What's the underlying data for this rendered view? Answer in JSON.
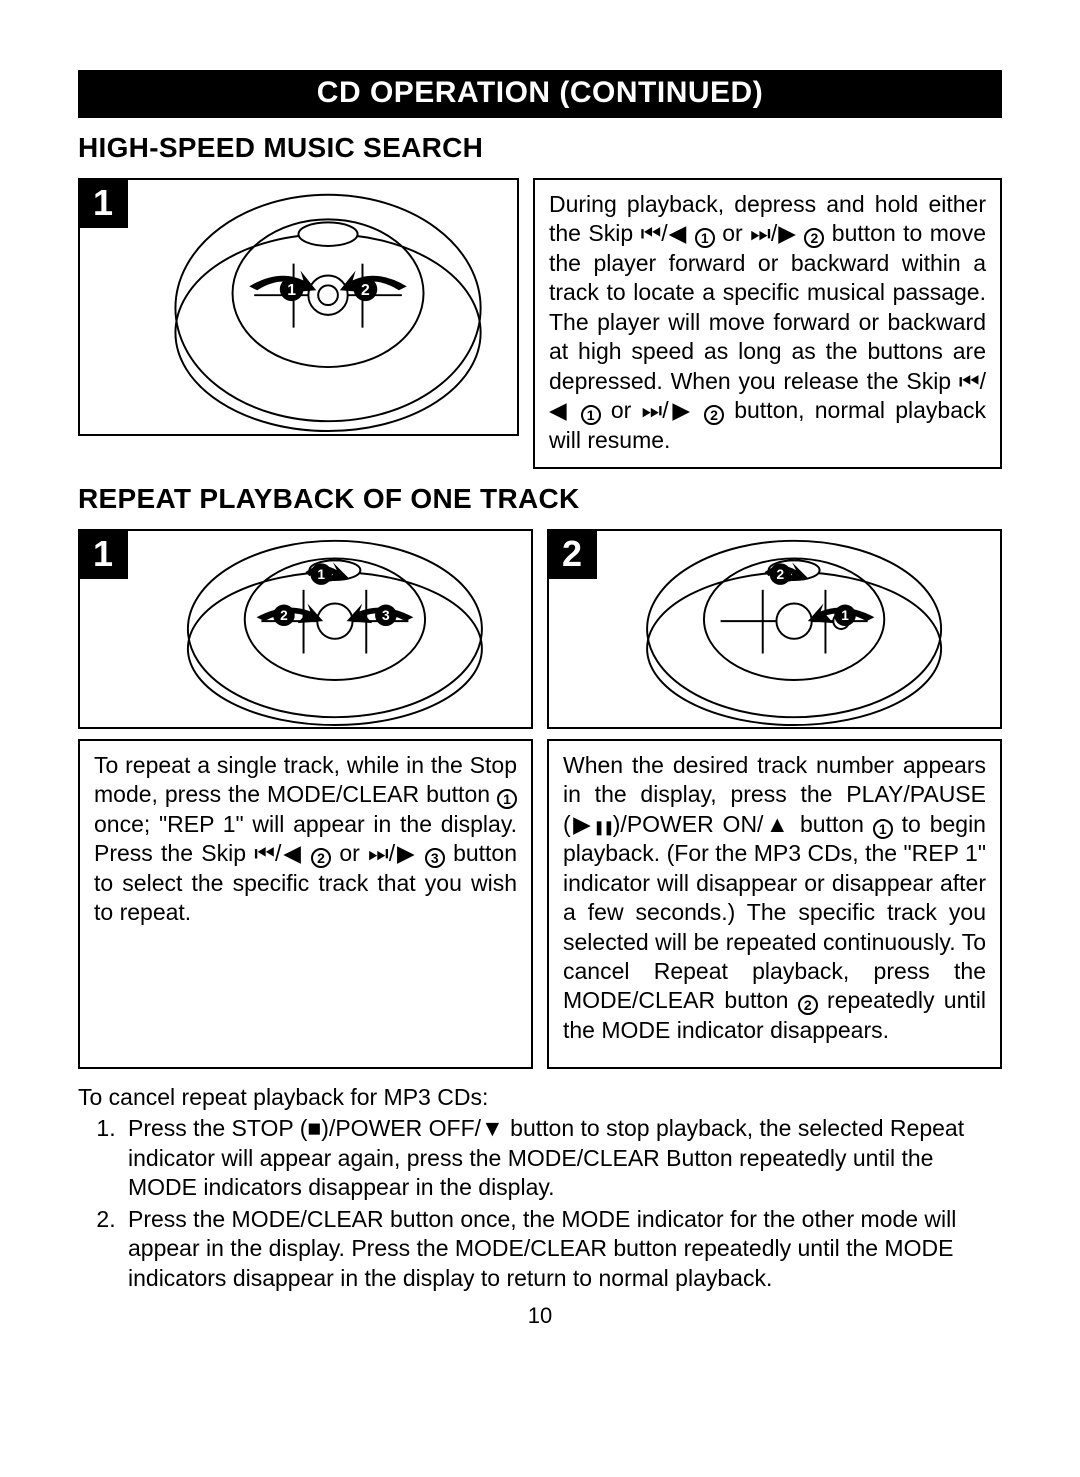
{
  "banner": "CD OPERATION (CONTINUED)",
  "section1": {
    "heading": "HIGH-SPEED MUSIC SEARCH",
    "panel_badge": "1",
    "diagram": {
      "arrow_labels": [
        "1",
        "2"
      ]
    },
    "text_parts": [
      "During playback, depress and hold either the Skip ",
      {
        "glyph": "skip_back"
      },
      "/",
      {
        "glyph": "tri_left"
      },
      " ",
      {
        "circ": "1"
      },
      " or ",
      {
        "glyph": "skip_fwd"
      },
      "/",
      {
        "glyph": "tri_right"
      },
      " ",
      {
        "circ": "2"
      },
      " button to move the player forward or backward within a track to locate a specific musical passage. The player will move forward or backward at high speed as long as the buttons are depressed. When you release the Skip ",
      {
        "glyph": "skip_back"
      },
      "/",
      {
        "glyph": "tri_left"
      },
      " ",
      {
        "circ": "1"
      },
      " or ",
      {
        "glyph": "skip_fwd"
      },
      "/",
      {
        "glyph": "tri_right"
      },
      " ",
      {
        "circ": "2"
      },
      " button, normal playback will resume."
    ]
  },
  "section2": {
    "heading": "REPEAT PLAYBACK OF ONE TRACK",
    "panels": [
      {
        "badge": "1",
        "diagram_labels": [
          "1",
          "2",
          "3"
        ],
        "text_parts": [
          "To repeat a single track, while in the Stop mode, press the MODE/CLEAR button ",
          {
            "circ": "1"
          },
          " once; \"REP 1\" will appear in the display. Press the Skip ",
          {
            "glyph": "skip_back"
          },
          "/",
          {
            "glyph": "tri_left"
          },
          " ",
          {
            "circ": "2"
          },
          " or ",
          {
            "glyph": "skip_fwd"
          },
          "/",
          {
            "glyph": "tri_right"
          },
          " ",
          {
            "circ": "3"
          },
          " button to select the specific track that you wish to repeat."
        ]
      },
      {
        "badge": "2",
        "diagram_labels": [
          "2",
          "1"
        ],
        "text_parts": [
          "When the desired track number appears in the display, press the PLAY/PAUSE (",
          {
            "glyph": "tri_right"
          },
          {
            "glyph": "pause"
          },
          ")/POWER ON/",
          {
            "glyph": "tri_up"
          },
          " button ",
          {
            "circ": "1"
          },
          " to begin playback. (For the MP3 CDs, the \"REP 1\" indicator will disappear or disappear after a few seconds.) The specific track you selected will be repeated continuously. To cancel Repeat playback, press the MODE/CLEAR button ",
          {
            "circ": "2"
          },
          " repeatedly until the MODE indicator disappears."
        ]
      }
    ]
  },
  "footer": {
    "intro": "To cancel repeat playback for MP3 CDs:",
    "items": [
      [
        "Press the STOP (",
        {
          "glyph": "stop"
        },
        ")/POWER OFF/",
        {
          "glyph": "tri_down"
        },
        "  button to stop playback, the  selected Repeat  indicator will appear again, press the MODE/CLEAR Button repeatedly until the MODE indicators disappear in the display."
      ],
      [
        "Press the MODE/CLEAR button once, the MODE indicator for the other mode will appear in the display. Press the MODE/CLEAR button repeatedly until the MODE indicators disappear in the display to return to normal playback."
      ]
    ]
  },
  "page_number": "10",
  "glyphs": {
    "skip_back": "⏮",
    "skip_fwd": "⏭",
    "tri_left": "◀",
    "tri_right": "▶",
    "tri_up": "▲",
    "tri_down": "▼",
    "pause": "❚❚",
    "stop": "■"
  },
  "style": {
    "banner_bg": "#000000",
    "banner_fg": "#ffffff",
    "border_color": "#000000",
    "body_font_size": 23
  }
}
